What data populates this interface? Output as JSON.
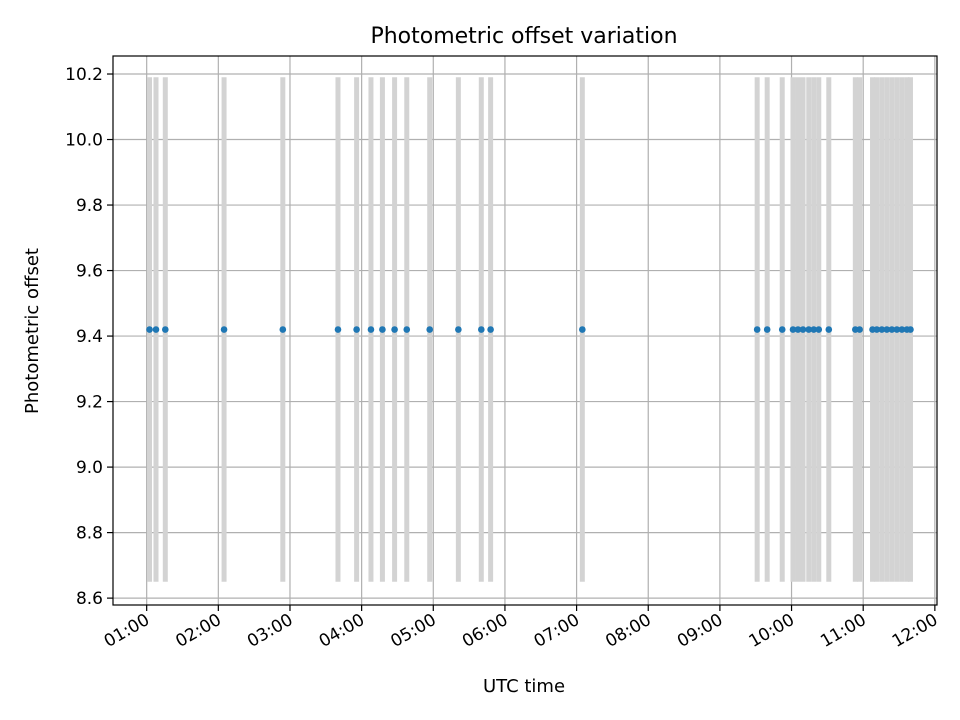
{
  "chart_data": {
    "type": "scatter",
    "title": "Photometric offset variation",
    "xlabel": "UTC time",
    "ylabel": "Photometric offset",
    "x_unit": "hours UTC",
    "xlim": [
      0.53,
      12.03
    ],
    "ylim": [
      8.579,
      10.255
    ],
    "x_ticks": [
      1,
      2,
      3,
      4,
      5,
      6,
      7,
      8,
      9,
      10,
      11,
      12
    ],
    "x_tick_labels": [
      "01:00",
      "02:00",
      "03:00",
      "04:00",
      "05:00",
      "06:00",
      "07:00",
      "08:00",
      "09:00",
      "10:00",
      "11:00",
      "12:00"
    ],
    "y_ticks": [
      8.6,
      8.8,
      9.0,
      9.2,
      9.4,
      9.6,
      9.8,
      10.0,
      10.2
    ],
    "y_tick_labels": [
      "8.6",
      "8.8",
      "9.0",
      "9.2",
      "9.4",
      "9.6",
      "9.8",
      "10.0",
      "10.2"
    ],
    "grid": true,
    "point_color": "#1f77b4",
    "error_bar_color": "#d3d3d3",
    "error_bar_range": [
      8.65,
      10.19
    ],
    "x": [
      1.04,
      1.13,
      1.26,
      2.08,
      2.9,
      3.67,
      3.93,
      4.13,
      4.29,
      4.46,
      4.63,
      4.95,
      5.35,
      5.67,
      5.8,
      7.08,
      9.52,
      9.66,
      9.87,
      10.02,
      10.09,
      10.16,
      10.24,
      10.31,
      10.38,
      10.52,
      10.89,
      10.95,
      11.13,
      11.19,
      11.26,
      11.33,
      11.4,
      11.47,
      11.54,
      11.61,
      11.66
    ],
    "y": [
      9.42,
      9.42,
      9.42,
      9.42,
      9.42,
      9.42,
      9.42,
      9.42,
      9.42,
      9.42,
      9.42,
      9.42,
      9.42,
      9.42,
      9.42,
      9.42,
      9.42,
      9.42,
      9.42,
      9.42,
      9.42,
      9.42,
      9.42,
      9.42,
      9.42,
      9.42,
      9.42,
      9.42,
      9.42,
      9.42,
      9.42,
      9.42,
      9.42,
      9.42,
      9.42,
      9.42,
      9.42
    ]
  }
}
